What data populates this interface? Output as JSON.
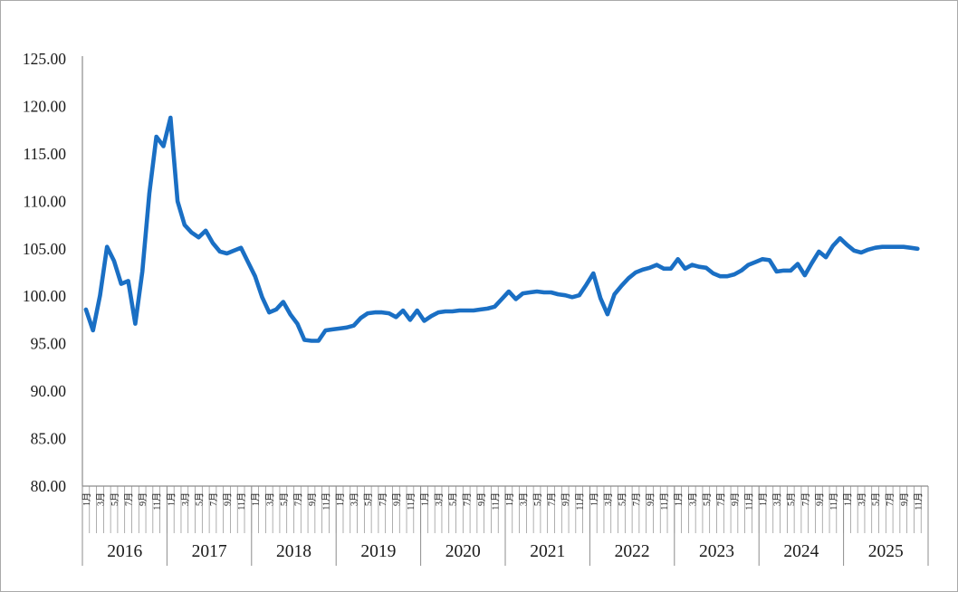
{
  "chart_data": {
    "type": "line",
    "title": "",
    "y_axis": {
      "min": 80,
      "max": 125,
      "step": 5,
      "tick_labels": [
        "125.00",
        "120.00",
        "115.00",
        "110.00",
        "105.00",
        "100.00",
        "95.00",
        "90.00",
        "85.00",
        "80.00"
      ]
    },
    "x_axis": {
      "years": [
        "2016",
        "2017",
        "2018",
        "2019",
        "2020",
        "2021",
        "2022",
        "2023",
        "2024",
        "2025"
      ],
      "months_per_year": 12,
      "month_labels": [
        "1月",
        "3月",
        "5月",
        "7月",
        "9月",
        "11月"
      ],
      "month_label_positions": [
        0,
        2,
        4,
        6,
        8,
        10
      ],
      "grid": "off",
      "legend": "none"
    },
    "series": {
      "color": "#1A6FC4",
      "values_by_year": {
        "2016": [
          98.6,
          96.4,
          100.1,
          105.2,
          103.7,
          101.3,
          101.6,
          97.1,
          102.6,
          110.8,
          116.8,
          115.8
        ],
        "2017": [
          118.8,
          110.0,
          107.5,
          106.7,
          106.2,
          106.9,
          105.6,
          104.7,
          104.5,
          104.8,
          105.1,
          103.6
        ],
        "2018": [
          102.1,
          99.9,
          98.3,
          98.6,
          99.4,
          98.1,
          97.1,
          95.4,
          95.3,
          95.3,
          96.4,
          96.5
        ],
        "2019": [
          96.6,
          96.7,
          96.9,
          97.7,
          98.2,
          98.3,
          98.3,
          98.2,
          97.8,
          98.5,
          97.5,
          98.5
        ],
        "2020": [
          97.4,
          97.9,
          98.3,
          98.4,
          98.4,
          98.5,
          98.5,
          98.5,
          98.6,
          98.7,
          98.9,
          99.7
        ],
        "2021": [
          100.5,
          99.7,
          100.3,
          100.4,
          100.5,
          100.4,
          100.4,
          100.2,
          100.1,
          99.9,
          100.1,
          101.2
        ],
        "2022": [
          102.4,
          99.8,
          98.1,
          100.2,
          101.1,
          101.9,
          102.5,
          102.8,
          103.0,
          103.3,
          102.9,
          102.9
        ],
        "2023": [
          103.9,
          102.9,
          103.3,
          103.1,
          103.0,
          102.4,
          102.1,
          102.1,
          102.3,
          102.7,
          103.3,
          103.6
        ],
        "2024": [
          103.9,
          103.8,
          102.6,
          102.7,
          102.7,
          103.4,
          102.2,
          103.5,
          104.7,
          104.1,
          105.3,
          106.1
        ],
        "2025": [
          105.4,
          104.8,
          104.6,
          104.9,
          105.1,
          105.2,
          105.2,
          105.2,
          105.2,
          105.1,
          105.0
        ]
      }
    },
    "colors": {
      "line": "#1A6FC4",
      "axis": "#8c8c8c",
      "text": "#1a1a1a",
      "border": "#a9a9a9"
    }
  }
}
